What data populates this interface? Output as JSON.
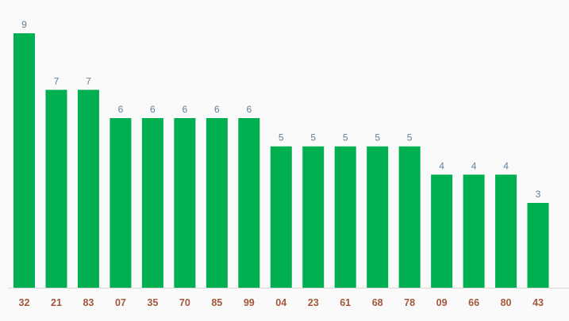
{
  "chart_data": {
    "type": "bar",
    "categories": [
      "32",
      "21",
      "83",
      "07",
      "35",
      "70",
      "85",
      "99",
      "04",
      "23",
      "61",
      "68",
      "78",
      "09",
      "66",
      "80",
      "43"
    ],
    "values": [
      9,
      7,
      7,
      6,
      6,
      6,
      6,
      6,
      5,
      5,
      5,
      5,
      5,
      4,
      4,
      4,
      3
    ],
    "title": "",
    "xlabel": "",
    "ylabel": "",
    "ylim": [
      0,
      9
    ],
    "grid": false,
    "data_labels": true,
    "colors": {
      "bar": "#00b050",
      "value_label": "#5f7f9c",
      "category_label": "#a3563a",
      "axis": "#d8d8d8",
      "background": "#fafafa"
    }
  }
}
